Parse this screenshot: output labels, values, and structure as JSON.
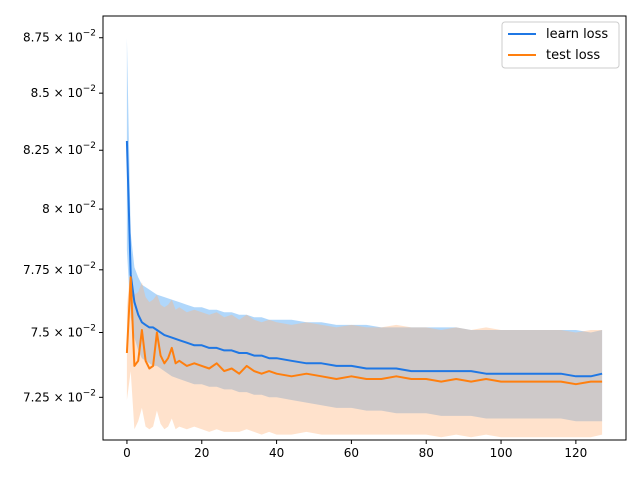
{
  "chart_data": {
    "type": "line",
    "title": "",
    "xlabel": "",
    "ylabel": "",
    "y_scale": "log",
    "xlim": [
      -6.4,
      133.4
    ],
    "ylim": [
      0.0709,
      0.0885
    ],
    "grid": false,
    "legend_position": "top-right",
    "x_ticks": [
      0,
      20,
      40,
      60,
      80,
      100,
      120
    ],
    "x_tick_labels": [
      "0",
      "20",
      "40",
      "60",
      "80",
      "100",
      "120"
    ],
    "y_ticks": [
      0.0725,
      0.075,
      0.0775,
      0.08,
      0.0825,
      0.085,
      0.0875
    ],
    "y_tick_labels": [
      {
        "mantissa": "7.25",
        "base": "10",
        "exp": "−2"
      },
      {
        "mantissa": "7.5",
        "base": "10",
        "exp": "−2"
      },
      {
        "mantissa": "7.75",
        "base": "10",
        "exp": "−2"
      },
      {
        "mantissa": "8",
        "base": "10",
        "exp": "−2"
      },
      {
        "mantissa": "8.25",
        "base": "10",
        "exp": "−2"
      },
      {
        "mantissa": "8.5",
        "base": "10",
        "exp": "−2"
      },
      {
        "mantissa": "8.75",
        "base": "10",
        "exp": "−2"
      }
    ],
    "series": [
      {
        "name": "learn loss",
        "color": "#1f77e4",
        "band_color": "#3a9cf5",
        "x": [
          0,
          1,
          2,
          3,
          4,
          5,
          6,
          7,
          8,
          10,
          12,
          14,
          16,
          18,
          20,
          22,
          24,
          26,
          28,
          30,
          32,
          34,
          36,
          38,
          40,
          44,
          48,
          52,
          56,
          60,
          64,
          68,
          72,
          76,
          80,
          84,
          88,
          92,
          96,
          100,
          104,
          108,
          112,
          116,
          120,
          124,
          127
        ],
        "mean": [
          0.0829,
          0.0773,
          0.0762,
          0.0757,
          0.0754,
          0.0753,
          0.0752,
          0.0752,
          0.0751,
          0.0749,
          0.0748,
          0.0747,
          0.0746,
          0.0745,
          0.0745,
          0.0744,
          0.0744,
          0.0743,
          0.0743,
          0.0742,
          0.0742,
          0.0741,
          0.0741,
          0.074,
          0.074,
          0.0739,
          0.0738,
          0.0738,
          0.0737,
          0.0737,
          0.0736,
          0.0736,
          0.0736,
          0.0735,
          0.0735,
          0.0735,
          0.0735,
          0.0735,
          0.0734,
          0.0734,
          0.0734,
          0.0734,
          0.0734,
          0.0734,
          0.0733,
          0.0733,
          0.0734
        ],
        "upper": [
          0.0875,
          0.079,
          0.0776,
          0.0772,
          0.0769,
          0.0768,
          0.0767,
          0.0766,
          0.0765,
          0.0764,
          0.0763,
          0.0762,
          0.0761,
          0.076,
          0.076,
          0.0759,
          0.0759,
          0.0758,
          0.0758,
          0.0757,
          0.0757,
          0.0756,
          0.0756,
          0.0755,
          0.0755,
          0.0755,
          0.0754,
          0.0754,
          0.0753,
          0.0753,
          0.0753,
          0.0752,
          0.0752,
          0.0752,
          0.0752,
          0.0752,
          0.0752,
          0.0751,
          0.0751,
          0.0751,
          0.0751,
          0.0751,
          0.0751,
          0.0751,
          0.0751,
          0.075,
          0.0751
        ],
        "lower": [
          0.0783,
          0.0756,
          0.0748,
          0.0743,
          0.074,
          0.0739,
          0.0738,
          0.0737,
          0.0737,
          0.0735,
          0.0733,
          0.0732,
          0.0731,
          0.073,
          0.073,
          0.0729,
          0.0729,
          0.0728,
          0.0728,
          0.0727,
          0.0727,
          0.0726,
          0.0726,
          0.0725,
          0.0725,
          0.0724,
          0.0723,
          0.0722,
          0.0721,
          0.0721,
          0.072,
          0.072,
          0.0719,
          0.0719,
          0.0719,
          0.0718,
          0.0718,
          0.0718,
          0.0717,
          0.0717,
          0.0717,
          0.0717,
          0.0717,
          0.0717,
          0.0716,
          0.0716,
          0.0716
        ]
      },
      {
        "name": "test loss",
        "color": "#ff7f0e",
        "band_color": "#ffb27a",
        "x": [
          0,
          1,
          2,
          3,
          4,
          5,
          6,
          7,
          8,
          9,
          10,
          11,
          12,
          13,
          14,
          16,
          18,
          20,
          22,
          24,
          26,
          28,
          30,
          32,
          34,
          36,
          38,
          40,
          44,
          48,
          52,
          56,
          60,
          64,
          68,
          72,
          76,
          80,
          84,
          88,
          92,
          96,
          100,
          104,
          108,
          112,
          116,
          120,
          124,
          127
        ],
        "mean": [
          0.0742,
          0.0772,
          0.0737,
          0.0739,
          0.0751,
          0.0739,
          0.0736,
          0.0737,
          0.075,
          0.0741,
          0.0738,
          0.074,
          0.0744,
          0.0738,
          0.0739,
          0.0737,
          0.0738,
          0.0737,
          0.0736,
          0.0738,
          0.0735,
          0.0736,
          0.0734,
          0.0737,
          0.0735,
          0.0734,
          0.0735,
          0.0734,
          0.0733,
          0.0734,
          0.0733,
          0.0732,
          0.0733,
          0.0732,
          0.0732,
          0.0733,
          0.0732,
          0.0732,
          0.0731,
          0.0732,
          0.0731,
          0.0732,
          0.0731,
          0.0731,
          0.0731,
          0.0731,
          0.0731,
          0.073,
          0.0731,
          0.0731
        ],
        "upper": [
          0.076,
          0.0777,
          0.0765,
          0.0766,
          0.077,
          0.0764,
          0.0762,
          0.0763,
          0.0765,
          0.0761,
          0.076,
          0.0761,
          0.0763,
          0.0759,
          0.076,
          0.0758,
          0.0759,
          0.0758,
          0.0757,
          0.0758,
          0.0756,
          0.0757,
          0.0755,
          0.0757,
          0.0755,
          0.0754,
          0.0755,
          0.0754,
          0.0753,
          0.0754,
          0.0753,
          0.0752,
          0.0753,
          0.0752,
          0.0752,
          0.0753,
          0.0752,
          0.0752,
          0.0751,
          0.0752,
          0.0751,
          0.0752,
          0.0751,
          0.0751,
          0.0751,
          0.0751,
          0.0751,
          0.075,
          0.0751,
          0.0751
        ],
        "lower": [
          0.0724,
          0.0735,
          0.0713,
          0.0716,
          0.0721,
          0.0714,
          0.0713,
          0.0714,
          0.072,
          0.0715,
          0.0713,
          0.0714,
          0.0717,
          0.0713,
          0.0714,
          0.0713,
          0.0714,
          0.0713,
          0.0712,
          0.0713,
          0.0712,
          0.0712,
          0.0712,
          0.0713,
          0.0712,
          0.0711,
          0.0712,
          0.0711,
          0.0711,
          0.0712,
          0.0711,
          0.0711,
          0.0711,
          0.0711,
          0.0711,
          0.0711,
          0.0711,
          0.0711,
          0.071,
          0.0711,
          0.071,
          0.0711,
          0.071,
          0.071,
          0.071,
          0.071,
          0.071,
          0.071,
          0.071,
          0.0711
        ]
      }
    ]
  }
}
